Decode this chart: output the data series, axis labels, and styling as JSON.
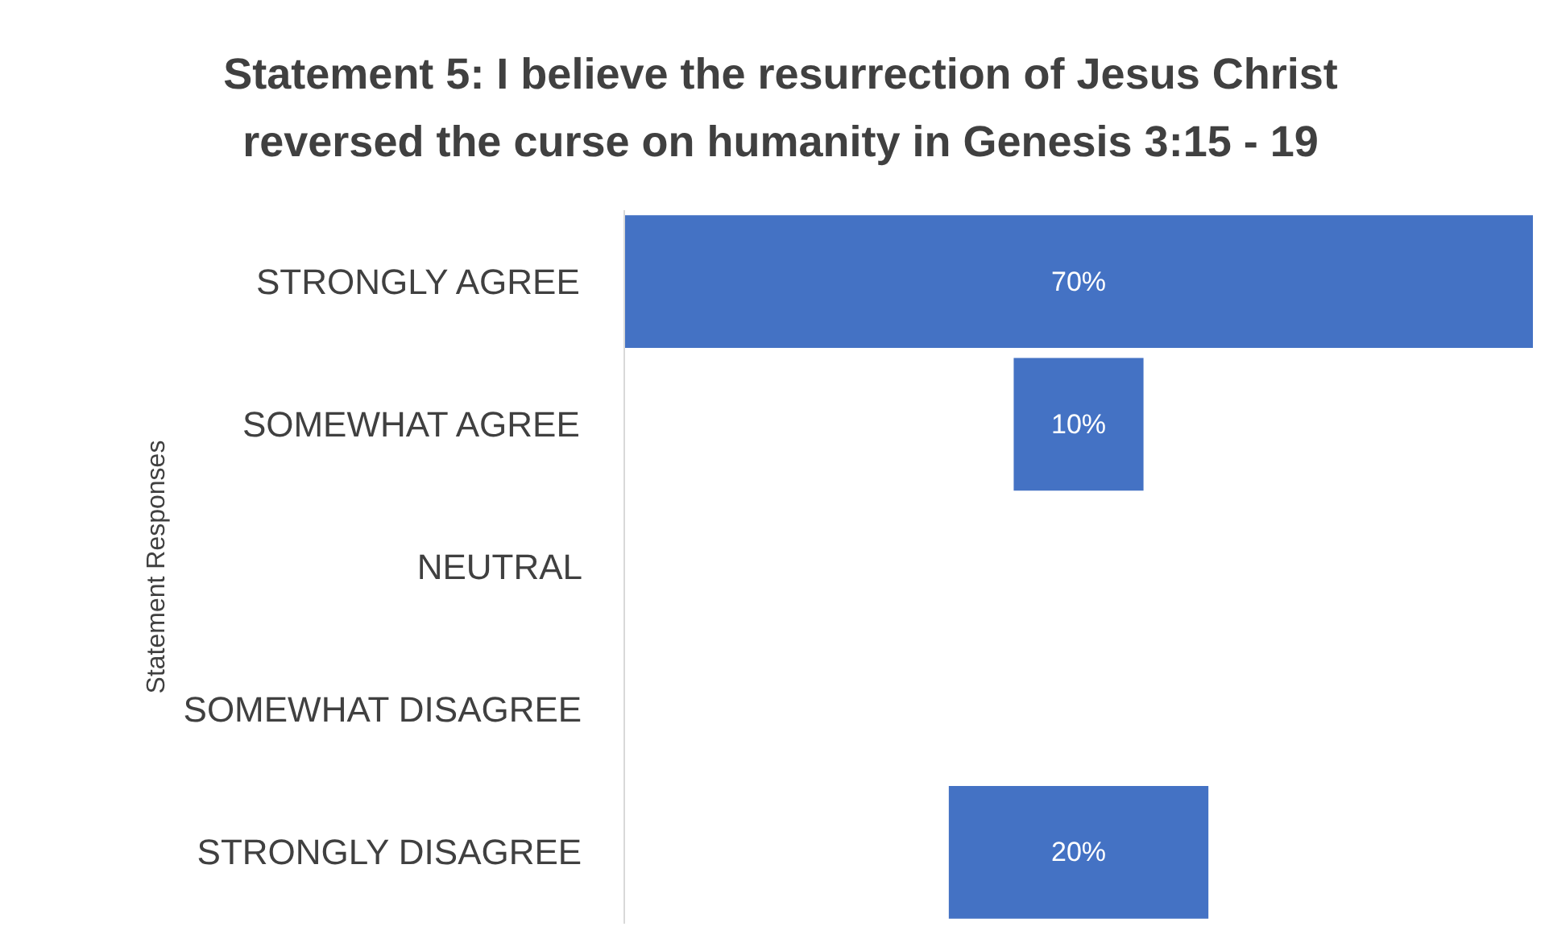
{
  "chart_data": {
    "type": "other",
    "title": "Statement 5: I believe the resurrection of Jesus Christ reversed the curse on humanity in Genesis 3:15 - 19",
    "ylabel": "Statement Responses",
    "categories": [
      "STRONGLY AGREE",
      "SOMEWHAT AGREE",
      "NEUTRAL",
      "SOMEWHAT DISAGREE",
      "STRONGLY DISAGREE"
    ],
    "values": [
      70,
      10,
      null,
      null,
      20
    ],
    "value_labels": [
      "70%",
      "10%",
      null,
      null,
      "20%"
    ],
    "color": "#4472c4"
  }
}
